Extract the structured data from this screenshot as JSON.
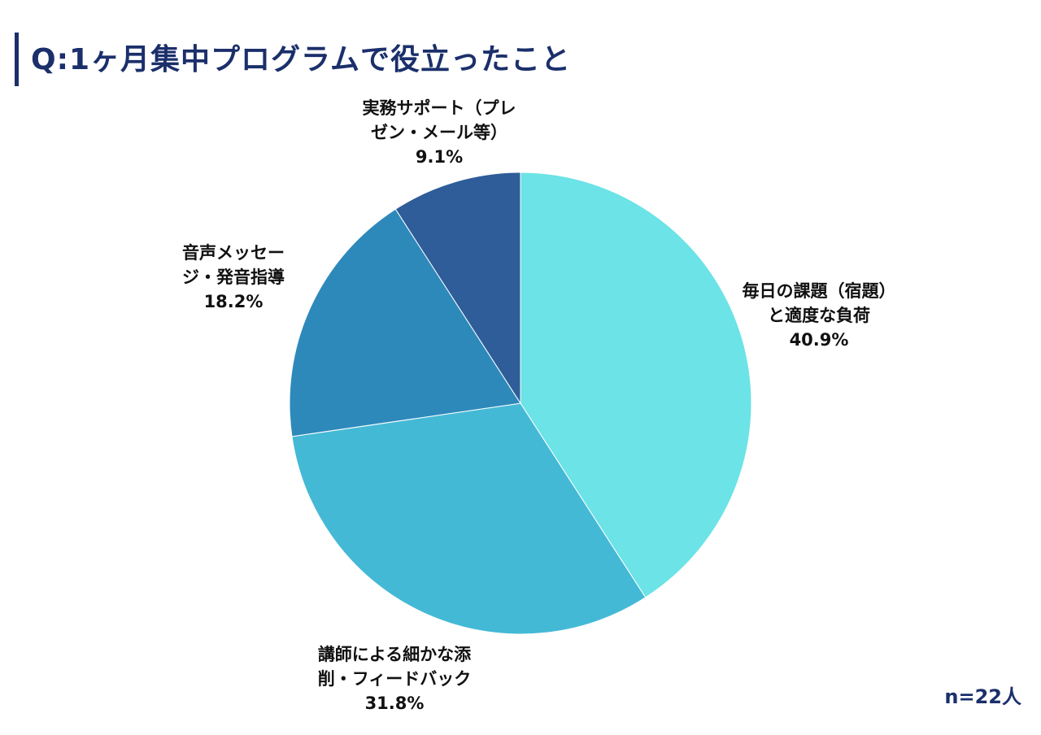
{
  "header": {
    "title": "Q:1ヶ月集中プログラムで役立ったこと"
  },
  "footer": {
    "sample_size": "n=22人"
  },
  "chart_data": {
    "type": "pie",
    "title": "Q:1ヶ月集中プログラムで役立ったこと",
    "start_angle_deg": 0,
    "direction": "clockwise",
    "slices": [
      {
        "label_lines": [
          "毎日の課題（宿題）",
          "と適度な負荷"
        ],
        "percent_text": "40.9%",
        "value": 40.9,
        "color": "#6ce3e6"
      },
      {
        "label_lines": [
          "講師による細かな添",
          "削・フィードバック"
        ],
        "percent_text": "31.8%",
        "value": 31.8,
        "color": "#44b9d6"
      },
      {
        "label_lines": [
          "音声メッセー",
          "ジ・発音指導"
        ],
        "percent_text": "18.2%",
        "value": 18.2,
        "color": "#2e89bb"
      },
      {
        "label_lines": [
          "実務サポート（プレ",
          "ゼン・メール等）"
        ],
        "percent_text": "9.1%",
        "value": 9.1,
        "color": "#2e5d99"
      }
    ]
  }
}
